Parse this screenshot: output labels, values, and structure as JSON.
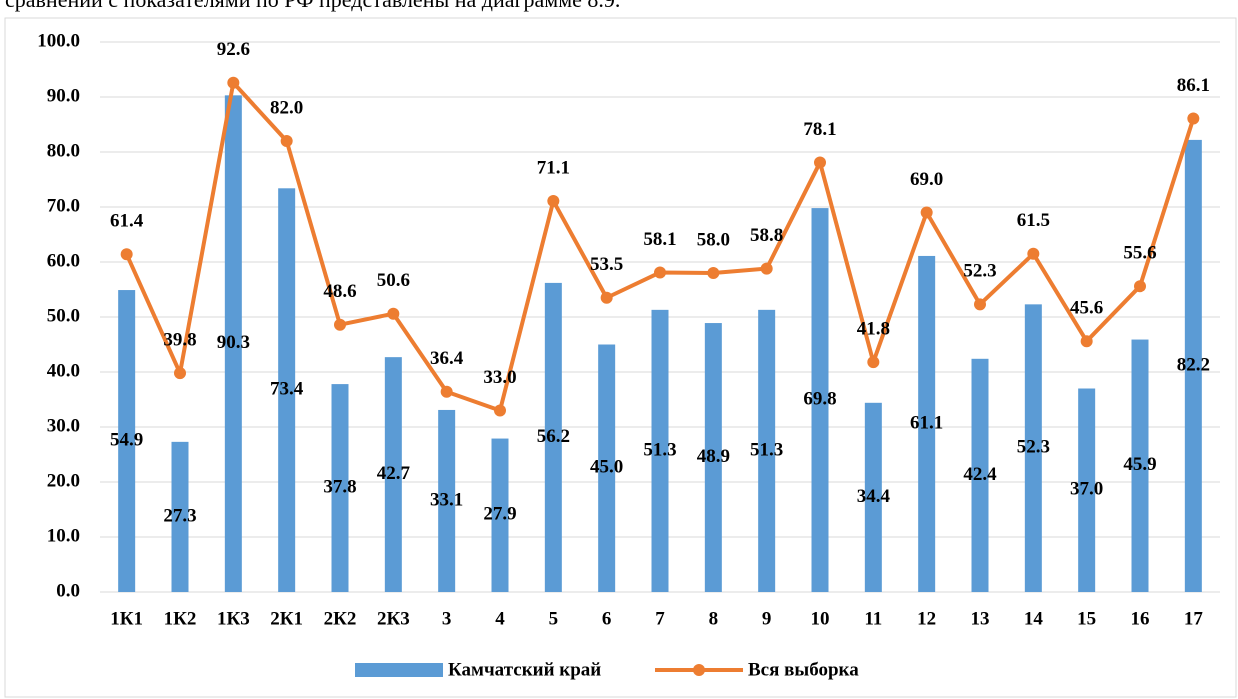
{
  "intro_text": "сравнении с показателями по РФ представлены на диаграмме 8.9.",
  "chart_data": {
    "type": "bar-line",
    "categories": [
      "1К1",
      "1К2",
      "1К3",
      "2К1",
      "2К2",
      "2К3",
      "3",
      "4",
      "5",
      "6",
      "7",
      "8",
      "9",
      "10",
      "11",
      "12",
      "13",
      "14",
      "15",
      "16",
      "17"
    ],
    "series": [
      {
        "name": "Камчатский край",
        "type": "bar",
        "color": "#5b9bd5",
        "values": [
          54.9,
          27.3,
          90.3,
          73.4,
          37.8,
          42.7,
          33.1,
          27.9,
          56.2,
          45.0,
          51.3,
          48.9,
          51.3,
          69.8,
          34.4,
          61.1,
          42.4,
          52.3,
          37.0,
          45.9,
          82.2
        ],
        "value_labels": [
          "54.9",
          "27.3",
          "90.3",
          "73.4",
          "37.8",
          "42.7",
          "33.1",
          "27.9",
          "56.2",
          "45.0",
          "51.3",
          "48.9",
          "51.3",
          "69.8",
          "34.4",
          "61.1",
          "42.4",
          "52.3",
          "37.0",
          "45.9",
          "82.2"
        ]
      },
      {
        "name": "Вся выборка",
        "type": "line",
        "color": "#ed7d31",
        "values": [
          61.4,
          39.8,
          92.6,
          82.0,
          48.6,
          50.6,
          36.4,
          33.0,
          71.1,
          53.5,
          58.1,
          58.0,
          58.8,
          78.1,
          41.8,
          69.0,
          52.3,
          61.5,
          45.6,
          55.6,
          86.1
        ],
        "value_labels": [
          "61.4",
          "39.8",
          "92.6",
          "82.0",
          "48.6",
          "50.6",
          "36.4",
          "33.0",
          "71.1",
          "53.5",
          "58.1",
          "58.0",
          "58.8",
          "78.1",
          "41.8",
          "69.0",
          "52.3",
          "61.5",
          "45.6",
          "55.6",
          "86.1"
        ]
      }
    ],
    "ylim": [
      0,
      100
    ],
    "yticks": [
      {
        "value": 0,
        "label": "0.0"
      },
      {
        "value": 10,
        "label": "10.0"
      },
      {
        "value": 20,
        "label": "20.0"
      },
      {
        "value": 30,
        "label": "30.0"
      },
      {
        "value": 40,
        "label": "40.0"
      },
      {
        "value": 50,
        "label": "50.0"
      },
      {
        "value": 60,
        "label": "60.0"
      },
      {
        "value": 70,
        "label": "70.0"
      },
      {
        "value": 80,
        "label": "80.0"
      },
      {
        "value": 90,
        "label": "90.0"
      },
      {
        "value": 100,
        "label": "100.0"
      }
    ],
    "grid": true,
    "legend": "bottom"
  }
}
